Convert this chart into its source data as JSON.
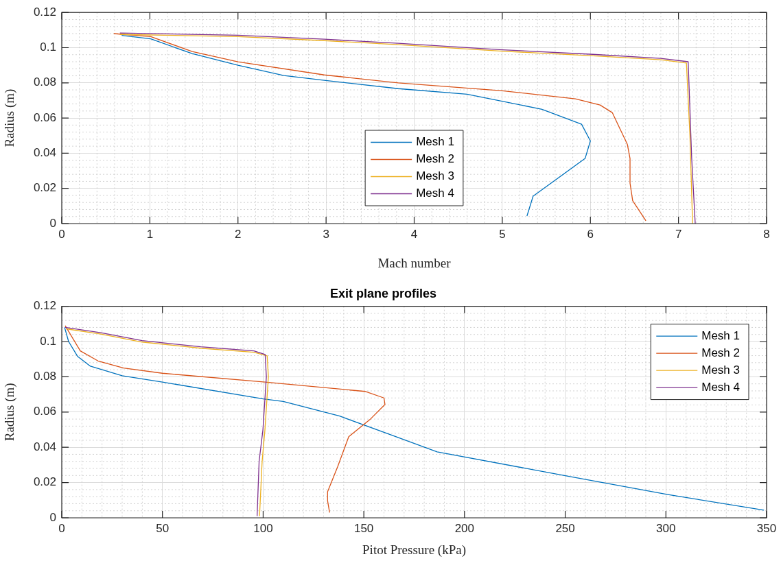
{
  "chart_data": [
    {
      "type": "line",
      "xlabel": "Mach number",
      "ylabel": "Radius (m)",
      "xlim": [
        0,
        8
      ],
      "ylim": [
        0,
        0.12
      ],
      "xticks": [
        0,
        1,
        2,
        3,
        4,
        5,
        6,
        7,
        8
      ],
      "yticks": [
        0,
        0.02,
        0.04,
        0.06,
        0.08,
        0.1,
        0.12
      ],
      "grid": true,
      "legend": "bottom",
      "series": [
        {
          "name": "Mesh 1",
          "color": "#0072bd",
          "x": [
            0.68,
            1.01,
            1.48,
            2.0,
            2.52,
            2.98,
            3.82,
            4.6,
            5.45,
            5.9,
            6.0,
            5.94,
            5.35,
            5.28
          ],
          "values": [
            0.107,
            0.105,
            0.0966,
            0.09,
            0.0842,
            0.0814,
            0.0767,
            0.0735,
            0.065,
            0.0565,
            0.047,
            0.037,
            0.0156,
            0.0043
          ]
        },
        {
          "name": "Mesh 2",
          "color": "#d95319",
          "x": [
            0.59,
            1.01,
            1.48,
            2.0,
            2.98,
            3.82,
            5.0,
            5.83,
            6.11,
            6.25,
            6.33,
            6.42,
            6.45,
            6.45,
            6.48,
            6.63
          ],
          "values": [
            0.108,
            0.1063,
            0.0978,
            0.092,
            0.0845,
            0.08,
            0.0755,
            0.0709,
            0.0674,
            0.063,
            0.0545,
            0.045,
            0.037,
            0.023,
            0.013,
            0.0016
          ]
        },
        {
          "name": "Mesh 3",
          "color": "#edb120",
          "x": [
            0.66,
            2.0,
            2.98,
            3.82,
            5.0,
            6.03,
            6.8,
            7.09,
            7.13,
            7.16
          ],
          "values": [
            0.1075,
            0.1063,
            0.104,
            0.1017,
            0.098,
            0.0954,
            0.0931,
            0.0913,
            0.05,
            0.0
          ]
        },
        {
          "name": "Mesh 4",
          "color": "#7e2f8e",
          "x": [
            0.66,
            2.0,
            2.98,
            3.82,
            5.0,
            6.03,
            6.8,
            7.11,
            7.15,
            7.19
          ],
          "values": [
            0.1083,
            0.1071,
            0.1048,
            0.1025,
            0.0988,
            0.0962,
            0.0939,
            0.092,
            0.037,
            0.0
          ]
        }
      ]
    },
    {
      "type": "line",
      "title": "Exit plane profiles",
      "xlabel": "Pitot Pressure (kPa)",
      "ylabel": "Radius (m)",
      "xlim": [
        0,
        350
      ],
      "xticks": [
        0,
        50,
        100,
        150,
        200,
        250,
        300,
        350
      ],
      "ylim": [
        0,
        0.12
      ],
      "yticks": [
        0,
        0.02,
        0.04,
        0.06,
        0.08,
        0.1,
        0.12
      ],
      "grid": true,
      "legend": "top right",
      "series": [
        {
          "name": "Mesh 1",
          "color": "#0072bd",
          "x": [
            1.4,
            3.4,
            7.9,
            14.2,
            30,
            50,
            100,
            110,
            138,
            167,
            186.4,
            250.5,
            301,
            348.7
          ],
          "values": [
            0.108,
            0.1,
            0.0915,
            0.086,
            0.0806,
            0.077,
            0.0675,
            0.066,
            0.0577,
            0.0456,
            0.0374,
            0.0238,
            0.0132,
            0.0043
          ]
        },
        {
          "name": "Mesh 2",
          "color": "#d95319",
          "x": [
            1.7,
            9.2,
            18,
            30.7,
            50,
            101,
            150.6,
            160,
            160.5,
            153,
            142.5,
            137,
            132,
            132,
            133
          ],
          "values": [
            0.109,
            0.0947,
            0.089,
            0.085,
            0.082,
            0.077,
            0.0717,
            0.068,
            0.0643,
            0.0557,
            0.046,
            0.029,
            0.0148,
            0.0097,
            0.003
          ]
        },
        {
          "name": "Mesh 3",
          "color": "#edb120",
          "x": [
            2.2,
            19.4,
            39.9,
            69,
            95.4,
            102,
            102.6,
            100.9,
            99.5,
            98.2
          ],
          "values": [
            0.1072,
            0.1042,
            0.0997,
            0.0962,
            0.0939,
            0.0919,
            0.08,
            0.05,
            0.032,
            0.001
          ]
        },
        {
          "name": "Mesh 4",
          "color": "#7e2f8e",
          "x": [
            1.7,
            19.4,
            39.9,
            69,
            95.4,
            101,
            101.6,
            99.9,
            98,
            97
          ],
          "values": [
            0.108,
            0.105,
            0.1005,
            0.097,
            0.0947,
            0.0927,
            0.08,
            0.05,
            0.032,
            0.001
          ]
        }
      ]
    }
  ]
}
